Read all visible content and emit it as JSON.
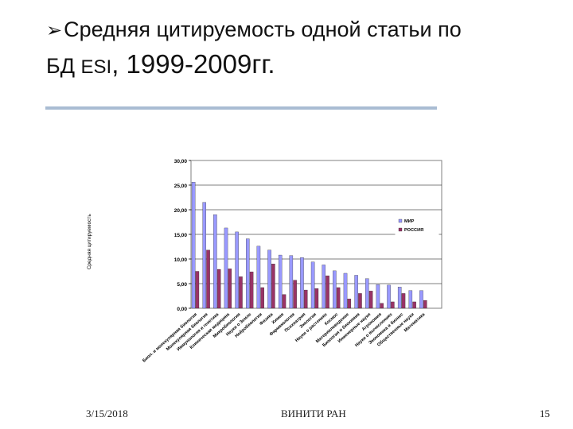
{
  "slide": {
    "title_line1": "Средняя цитируемость одной статьи  по",
    "title_line2_prefix": "БД ",
    "title_line2_esi": "ESI",
    "title_line2_years": ", 1999-2009гг.",
    "bullet_icon": "arrow-bullet-icon"
  },
  "footer": {
    "date": "3/15/2018",
    "organization": "ВИНИТИ РАН",
    "page": "15"
  },
  "chart_data": {
    "type": "bar",
    "title": "",
    "xlabel": "",
    "ylabel": "Средняя цитируемость",
    "ylim": [
      0,
      30
    ],
    "yticks": [
      "0,00",
      "5,00",
      "10,00",
      "15,00",
      "20,00",
      "25,00",
      "30,00"
    ],
    "grid": true,
    "legend_position": "right",
    "categories": [
      "Биол. и молекулярная биология",
      "Молекулярная биология",
      "Иммунология и генетика",
      "Клиническая медицина",
      "Микробиология",
      "Науки о Земле",
      "Нейробиология",
      "Физика",
      "Химия",
      "Фармакология",
      "Психиатрия",
      "Экология",
      "Науки о растениях",
      "Космос",
      "Материаловедение",
      "Биология и биохимия",
      "Инженерные науки",
      "Агрономия",
      "Науки о вычислениях",
      "Экономика и бизнес",
      "Общественные науки",
      "Математика"
    ],
    "series": [
      {
        "name": "МИР",
        "color": "#9999ff",
        "values": [
          25.6,
          21.5,
          19.0,
          16.3,
          15.5,
          14.1,
          12.6,
          11.8,
          10.8,
          10.7,
          10.3,
          9.4,
          8.8,
          7.6,
          7.1,
          6.7,
          6.0,
          4.8,
          4.7,
          4.3,
          3.6,
          3.6
        ]
      },
      {
        "name": "РОССИЯ",
        "color": "#993366",
        "values": [
          7.5,
          11.8,
          7.9,
          8.0,
          6.4,
          7.4,
          4.2,
          9.0,
          2.8,
          5.7,
          3.7,
          4.0,
          6.6,
          4.2,
          1.9,
          3.0,
          3.5,
          1.0,
          1.3,
          3.0,
          1.3,
          1.6
        ]
      }
    ]
  }
}
